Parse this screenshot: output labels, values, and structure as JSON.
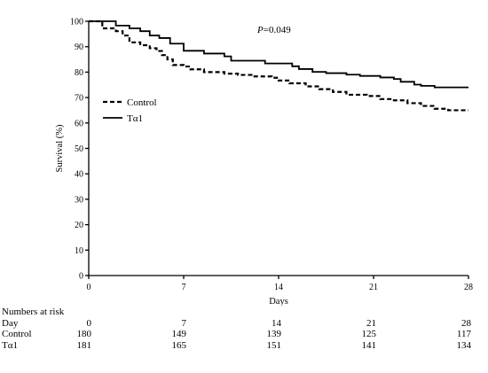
{
  "chart_data": {
    "type": "line",
    "step": true,
    "xlabel": "Days",
    "ylabel": "Survival (%)",
    "xlim": [
      0,
      28
    ],
    "ylim": [
      0,
      100
    ],
    "x_ticks": [
      0,
      7,
      14,
      21,
      28
    ],
    "y_ticks": [
      0,
      10,
      20,
      30,
      40,
      50,
      60,
      70,
      80,
      90,
      100
    ],
    "grid": false,
    "legend_position": "left",
    "annotation": {
      "italic": "P",
      "text": "=0.049"
    },
    "series": [
      {
        "name": "Control",
        "style": "dashed",
        "color": "#000000",
        "points": [
          [
            0,
            100
          ],
          [
            1,
            97.2
          ],
          [
            2,
            96.1
          ],
          [
            2.5,
            94.4
          ],
          [
            3,
            91.7
          ],
          [
            3.8,
            90.6
          ],
          [
            4.5,
            89.4
          ],
          [
            5,
            88.3
          ],
          [
            5.4,
            86.7
          ],
          [
            5.8,
            85.0
          ],
          [
            6.2,
            82.8
          ],
          [
            7,
            82.2
          ],
          [
            7.5,
            81.1
          ],
          [
            8.5,
            80.0
          ],
          [
            10,
            79.4
          ],
          [
            11,
            78.9
          ],
          [
            12,
            78.3
          ],
          [
            13.5,
            77.8
          ],
          [
            14,
            76.7
          ],
          [
            14.8,
            75.6
          ],
          [
            16,
            74.4
          ],
          [
            17,
            73.3
          ],
          [
            18,
            72.2
          ],
          [
            19,
            71.1
          ],
          [
            20.5,
            70.6
          ],
          [
            21.5,
            69.4
          ],
          [
            22.5,
            68.9
          ],
          [
            23.5,
            67.8
          ],
          [
            24.5,
            66.7
          ],
          [
            25.5,
            65.6
          ],
          [
            26.5,
            65.0
          ],
          [
            28,
            65.0
          ]
        ]
      },
      {
        "name": "Tα1",
        "style": "solid",
        "color": "#000000",
        "points": [
          [
            0,
            100
          ],
          [
            2,
            98.3
          ],
          [
            3,
            97.2
          ],
          [
            3.8,
            96.1
          ],
          [
            4.5,
            94.4
          ],
          [
            5.2,
            93.4
          ],
          [
            6,
            91.2
          ],
          [
            7,
            88.4
          ],
          [
            8.5,
            87.3
          ],
          [
            10,
            86.2
          ],
          [
            10.5,
            84.5
          ],
          [
            13,
            83.4
          ],
          [
            15,
            82.3
          ],
          [
            15.5,
            81.2
          ],
          [
            16.5,
            80.1
          ],
          [
            17.5,
            79.6
          ],
          [
            19,
            79.0
          ],
          [
            20,
            78.5
          ],
          [
            21.5,
            77.9
          ],
          [
            22.5,
            77.3
          ],
          [
            23,
            76.2
          ],
          [
            24,
            75.1
          ],
          [
            24.5,
            74.6
          ],
          [
            25.5,
            74.0
          ],
          [
            28,
            74.0
          ]
        ]
      }
    ]
  },
  "risk_table": {
    "title": "Numbers at risk",
    "rows": [
      {
        "label": "Day",
        "values": [
          "0",
          "7",
          "14",
          "21",
          "28"
        ]
      },
      {
        "label": "Control",
        "values": [
          "180",
          "149",
          "139",
          "125",
          "117"
        ]
      },
      {
        "label": "Tα1",
        "values": [
          "181",
          "165",
          "151",
          "141",
          "134"
        ]
      }
    ]
  }
}
